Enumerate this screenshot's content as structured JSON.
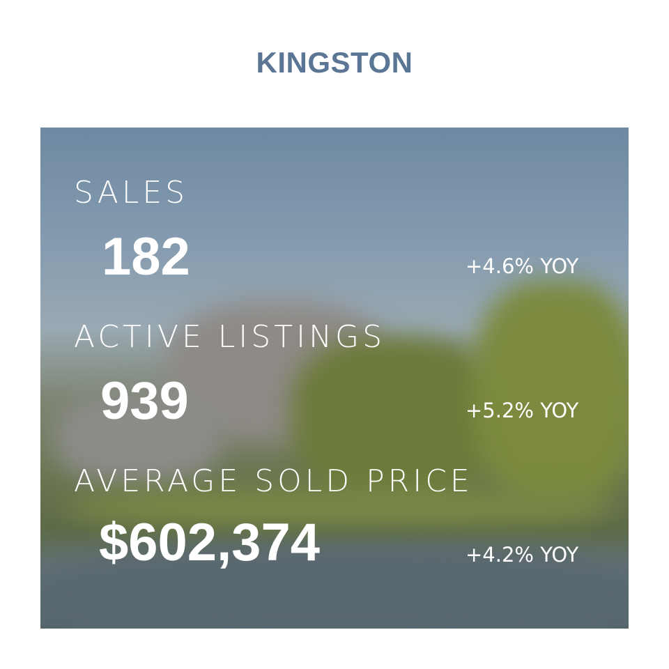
{
  "title": "KINGSTON",
  "metrics": [
    {
      "label": "SALES",
      "value": "182",
      "change": "+4.6% YOY"
    },
    {
      "label": "ACTIVE LISTINGS",
      "value": "939",
      "change": "+5.2% YOY"
    },
    {
      "label": "AVERAGE SOLD PRICE",
      "value": "$602,374",
      "change": "+4.2% YOY"
    }
  ]
}
